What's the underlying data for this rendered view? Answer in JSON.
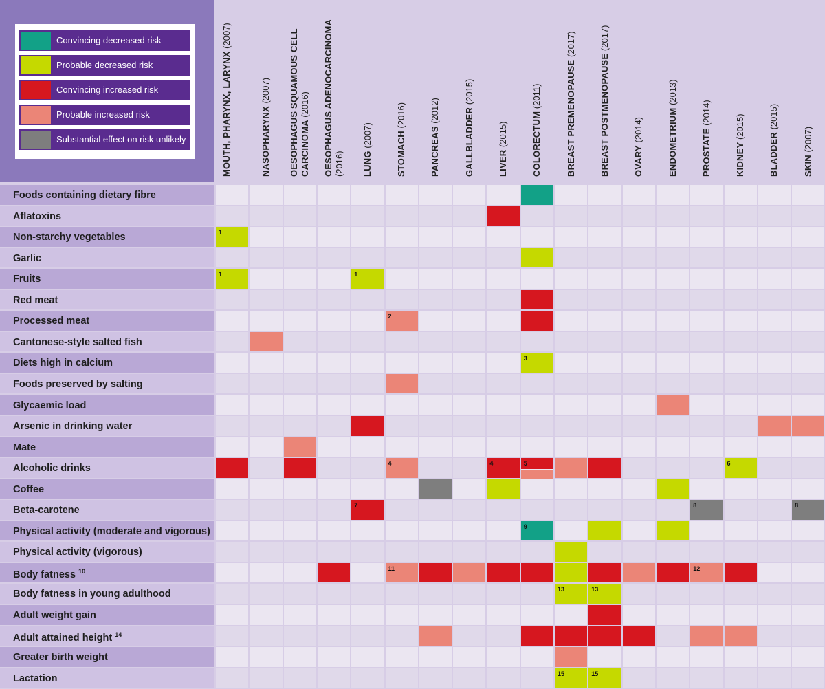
{
  "colors": {
    "convincing_decreased": "#12a187",
    "probable_decreased": "#c5d900",
    "convincing_increased": "#d6171f",
    "probable_increased": "#eb8577",
    "unlikely": "#7e7e7e"
  },
  "legend": [
    {
      "key": "convincing_decreased",
      "label": "Convincing decreased risk"
    },
    {
      "key": "probable_decreased",
      "label": "Probable decreased risk"
    },
    {
      "key": "convincing_increased",
      "label": "Convincing increased risk"
    },
    {
      "key": "probable_increased",
      "label": "Probable increased risk"
    },
    {
      "key": "unlikely",
      "label": "Substantial effect on risk unlikely"
    }
  ],
  "chart_data": {
    "type": "heatmap",
    "columns": [
      {
        "name": "MOUTH, PHARYNX, LARYNX",
        "year": "(2007)"
      },
      {
        "name": "NASOPHARYNX",
        "year": "(2007)"
      },
      {
        "name": "OESOPHAGUS SQUAMOUS CELL CARCINOMA",
        "year": "(2016)"
      },
      {
        "name": "OESOPHAGUS ADENOCARCINOMA",
        "year": "(2016)"
      },
      {
        "name": "LUNG",
        "year": "(2007)"
      },
      {
        "name": "STOMACH",
        "year": "(2016)"
      },
      {
        "name": "PANCREAS",
        "year": "(2012)"
      },
      {
        "name": "GALLBLADDER",
        "year": "(2015)"
      },
      {
        "name": "LIVER",
        "year": "(2015)"
      },
      {
        "name": "COLORECTUM",
        "year": "(2011)"
      },
      {
        "name": "BREAST PREMENOPAUSE",
        "year": "(2017)"
      },
      {
        "name": "BREAST POSTMENOPAUSE",
        "year": "(2017)"
      },
      {
        "name": "OVARY",
        "year": "(2014)"
      },
      {
        "name": "ENDOMETRIUM",
        "year": "(2013)"
      },
      {
        "name": "PROSTATE",
        "year": "(2014)"
      },
      {
        "name": "KIDNEY",
        "year": "(2015)"
      },
      {
        "name": "BLADDER",
        "year": "(2015)"
      },
      {
        "name": "SKIN",
        "year": "(2007)"
      }
    ],
    "rows": [
      {
        "label": "Foods containing dietary fibre",
        "sup": ""
      },
      {
        "label": "Aflatoxins",
        "sup": ""
      },
      {
        "label": "Non-starchy vegetables",
        "sup": ""
      },
      {
        "label": "Garlic",
        "sup": ""
      },
      {
        "label": "Fruits",
        "sup": ""
      },
      {
        "label": "Red meat",
        "sup": ""
      },
      {
        "label": "Processed meat",
        "sup": ""
      },
      {
        "label": "Cantonese-style salted fish",
        "sup": ""
      },
      {
        "label": "Diets high in calcium",
        "sup": ""
      },
      {
        "label": "Foods preserved by salting",
        "sup": ""
      },
      {
        "label": "Glycaemic load",
        "sup": ""
      },
      {
        "label": "Arsenic in drinking water",
        "sup": ""
      },
      {
        "label": "Mate",
        "sup": ""
      },
      {
        "label": "Alcoholic drinks",
        "sup": ""
      },
      {
        "label": "Coffee",
        "sup": ""
      },
      {
        "label": "Beta-carotene",
        "sup": ""
      },
      {
        "label": "Physical activity (moderate and vigorous)",
        "sup": ""
      },
      {
        "label": "Physical activity (vigorous)",
        "sup": ""
      },
      {
        "label": "Body fatness",
        "sup": "10"
      },
      {
        "label": "Body fatness in young adulthood",
        "sup": ""
      },
      {
        "label": "Adult weight gain",
        "sup": ""
      },
      {
        "label": "Adult attained height",
        "sup": "14"
      },
      {
        "label": "Greater birth weight",
        "sup": ""
      },
      {
        "label": "Lactation",
        "sup": ""
      }
    ],
    "cells": [
      {
        "row": 0,
        "col": 9,
        "v": "convincing_decreased"
      },
      {
        "row": 1,
        "col": 8,
        "v": "convincing_increased"
      },
      {
        "row": 2,
        "col": 0,
        "v": "probable_decreased",
        "note": "1"
      },
      {
        "row": 3,
        "col": 9,
        "v": "probable_decreased"
      },
      {
        "row": 4,
        "col": 0,
        "v": "probable_decreased",
        "note": "1"
      },
      {
        "row": 4,
        "col": 4,
        "v": "probable_decreased",
        "note": "1"
      },
      {
        "row": 5,
        "col": 9,
        "v": "convincing_increased"
      },
      {
        "row": 6,
        "col": 5,
        "v": "probable_increased",
        "note": "2"
      },
      {
        "row": 6,
        "col": 9,
        "v": "convincing_increased"
      },
      {
        "row": 7,
        "col": 1,
        "v": "probable_increased"
      },
      {
        "row": 8,
        "col": 9,
        "v": "probable_decreased",
        "note": "3"
      },
      {
        "row": 9,
        "col": 5,
        "v": "probable_increased"
      },
      {
        "row": 10,
        "col": 13,
        "v": "probable_increased"
      },
      {
        "row": 11,
        "col": 4,
        "v": "convincing_increased"
      },
      {
        "row": 11,
        "col": 16,
        "v": "probable_increased"
      },
      {
        "row": 11,
        "col": 17,
        "v": "probable_increased"
      },
      {
        "row": 12,
        "col": 2,
        "v": "probable_increased"
      },
      {
        "row": 13,
        "col": 0,
        "v": "convincing_increased"
      },
      {
        "row": 13,
        "col": 2,
        "v": "convincing_increased"
      },
      {
        "row": 13,
        "col": 5,
        "v": "probable_increased",
        "note": "4"
      },
      {
        "row": 13,
        "col": 8,
        "v": "convincing_increased",
        "note": "4"
      },
      {
        "row": 13,
        "col": 9,
        "v": "convincing_increased",
        "v2": "probable_increased",
        "note": "5"
      },
      {
        "row": 13,
        "col": 10,
        "v": "probable_increased"
      },
      {
        "row": 13,
        "col": 11,
        "v": "convincing_increased"
      },
      {
        "row": 13,
        "col": 15,
        "v": "probable_decreased",
        "note": "6"
      },
      {
        "row": 14,
        "col": 6,
        "v": "unlikely"
      },
      {
        "row": 14,
        "col": 8,
        "v": "probable_decreased"
      },
      {
        "row": 14,
        "col": 13,
        "v": "probable_decreased"
      },
      {
        "row": 15,
        "col": 4,
        "v": "convincing_increased",
        "note": "7"
      },
      {
        "row": 15,
        "col": 14,
        "v": "unlikely",
        "note": "8"
      },
      {
        "row": 15,
        "col": 17,
        "v": "unlikely",
        "note": "8"
      },
      {
        "row": 16,
        "col": 9,
        "v": "convincing_decreased",
        "note": "9"
      },
      {
        "row": 16,
        "col": 11,
        "v": "probable_decreased"
      },
      {
        "row": 16,
        "col": 13,
        "v": "probable_decreased"
      },
      {
        "row": 17,
        "col": 10,
        "v": "probable_decreased"
      },
      {
        "row": 18,
        "col": 3,
        "v": "convincing_increased"
      },
      {
        "row": 18,
        "col": 5,
        "v": "probable_increased",
        "note": "11"
      },
      {
        "row": 18,
        "col": 6,
        "v": "convincing_increased"
      },
      {
        "row": 18,
        "col": 7,
        "v": "probable_increased"
      },
      {
        "row": 18,
        "col": 8,
        "v": "convincing_increased"
      },
      {
        "row": 18,
        "col": 9,
        "v": "convincing_increased"
      },
      {
        "row": 18,
        "col": 10,
        "v": "probable_decreased"
      },
      {
        "row": 18,
        "col": 11,
        "v": "convincing_increased"
      },
      {
        "row": 18,
        "col": 12,
        "v": "probable_increased"
      },
      {
        "row": 18,
        "col": 13,
        "v": "convincing_increased"
      },
      {
        "row": 18,
        "col": 14,
        "v": "probable_increased",
        "note": "12"
      },
      {
        "row": 18,
        "col": 15,
        "v": "convincing_increased"
      },
      {
        "row": 19,
        "col": 10,
        "v": "probable_decreased",
        "note": "13"
      },
      {
        "row": 19,
        "col": 11,
        "v": "probable_decreased",
        "note": "13"
      },
      {
        "row": 20,
        "col": 11,
        "v": "convincing_increased"
      },
      {
        "row": 21,
        "col": 6,
        "v": "probable_increased"
      },
      {
        "row": 21,
        "col": 9,
        "v": "convincing_increased"
      },
      {
        "row": 21,
        "col": 10,
        "v": "convincing_increased"
      },
      {
        "row": 21,
        "col": 11,
        "v": "convincing_increased"
      },
      {
        "row": 21,
        "col": 12,
        "v": "convincing_increased"
      },
      {
        "row": 21,
        "col": 14,
        "v": "probable_increased"
      },
      {
        "row": 21,
        "col": 15,
        "v": "probable_increased"
      },
      {
        "row": 22,
        "col": 10,
        "v": "probable_increased"
      },
      {
        "row": 23,
        "col": 10,
        "v": "probable_decreased",
        "note": "15"
      },
      {
        "row": 23,
        "col": 11,
        "v": "probable_decreased",
        "note": "15"
      }
    ]
  }
}
